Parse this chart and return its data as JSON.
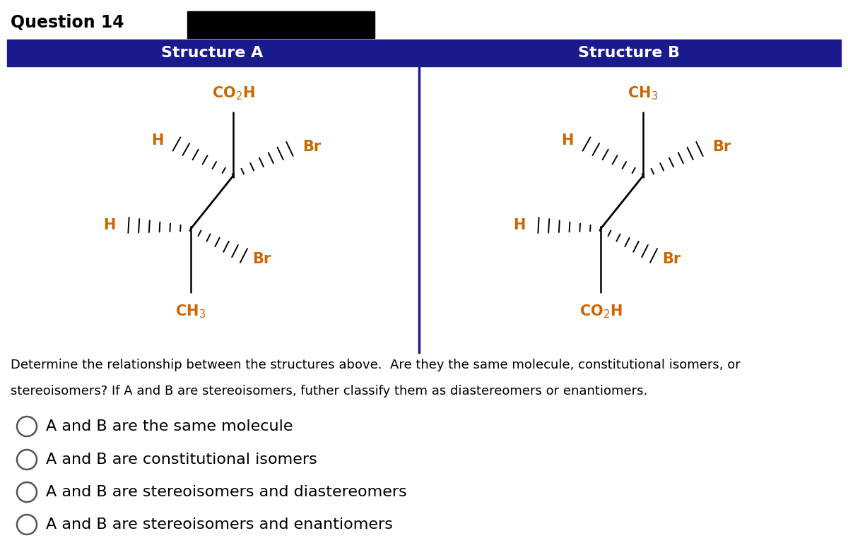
{
  "title": "Question 14",
  "header_bg_color": "#1a1a8c",
  "header_text_color": "#ffffff",
  "structure_a_label": "Structure A",
  "structure_b_label": "Structure B",
  "divider_color": "#1a1a8c",
  "question_text": "Determine the relationship between the structures above.  Are they the same molecule, constitutional isomers, or",
  "question_text2": "stereoisomers? If A and B are stereoisomers, futher classify them as diastereomers or enantiomers.",
  "options": [
    "A and B are the same molecule",
    "A and B are constitutional isomers",
    "A and B are stereoisomers and diastereomers",
    "A and B are stereoisomers and enantiomers"
  ],
  "label_color_orange": "#cc6600",
  "label_color_black": "#000000",
  "line_color": "#000000",
  "bg_color": "#ffffff"
}
